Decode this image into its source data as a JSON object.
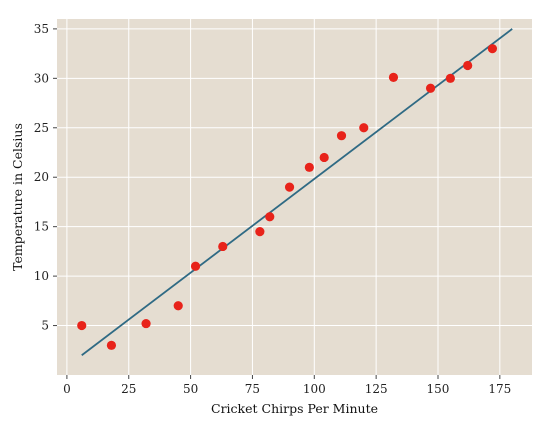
{
  "chart_data": {
    "type": "scatter",
    "title": "",
    "xlabel": "Cricket Chirps Per Minute",
    "ylabel": "Temperature in Celsius",
    "xlim": [
      -4,
      188
    ],
    "ylim": [
      0,
      36
    ],
    "xticks": [
      0,
      25,
      50,
      75,
      100,
      125,
      150,
      175
    ],
    "yticks": [
      5,
      10,
      15,
      20,
      25,
      30,
      35
    ],
    "grid": true,
    "colors": {
      "background": "#e5ddd1",
      "grid": "#ffffff",
      "points": "#e8231a",
      "line": "#2f6a84"
    },
    "series": [
      {
        "type": "scatter",
        "x": [
          6,
          18,
          32,
          45,
          52,
          63,
          78,
          82,
          90,
          98,
          104,
          111,
          120,
          132,
          147,
          155,
          162,
          172
        ],
        "y": [
          5.0,
          3.0,
          5.2,
          7.0,
          11.0,
          13.0,
          14.5,
          16.0,
          19.0,
          21.0,
          22.0,
          24.2,
          25.0,
          30.1,
          29.0,
          30.0,
          31.3,
          33.0
        ]
      },
      {
        "type": "line",
        "x": [
          6,
          180
        ],
        "y": [
          2.0,
          35.0
        ]
      }
    ]
  }
}
